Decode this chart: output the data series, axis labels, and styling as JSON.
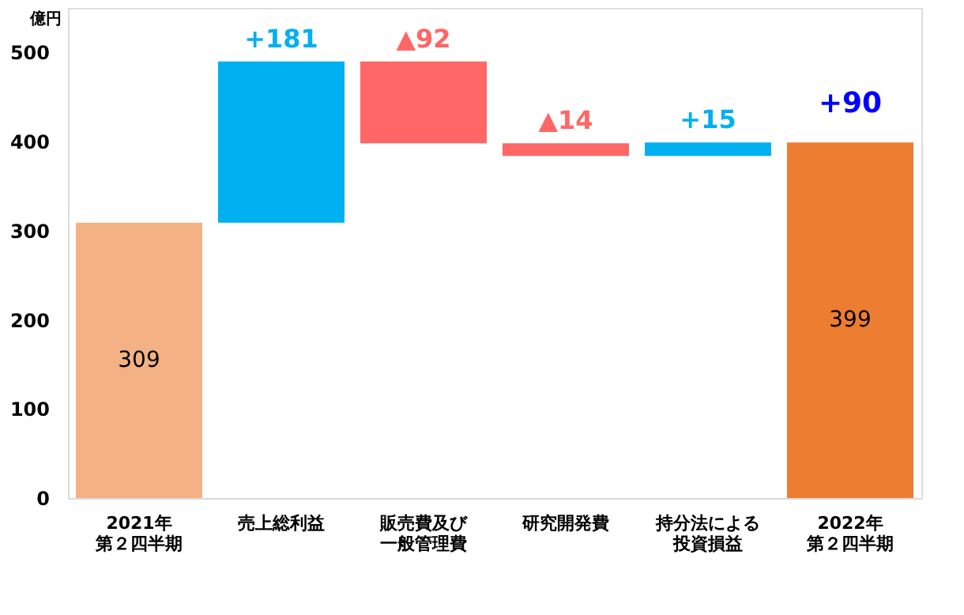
{
  "chart_data": {
    "type": "bar",
    "ylabel": "億円",
    "categories": [
      "2021年第２四半期",
      "売上総利益",
      "販売費及び一般管理費",
      "研究開発費",
      "持分法による投資損益",
      "2022年第２四半期"
    ],
    "values": [
      309,
      181,
      -92,
      -14,
      15,
      399
    ],
    "base": [
      0,
      309,
      490,
      398,
      384,
      0
    ],
    "colors": [
      "#f4b183",
      "#00b0f0",
      "#ff6666",
      "#ff6666",
      "#00b0f0",
      "#ed7d31"
    ],
    "value_labels": [
      "309",
      "+181",
      "▲92",
      "▲14",
      "+15",
      "399"
    ],
    "annotations": [
      {
        "text": "+90",
        "x": "2022年第２四半期",
        "y": 399
      }
    ],
    "ylim": [
      0,
      550
    ],
    "yticks": [
      0,
      100,
      200,
      300,
      400,
      500
    ],
    "grid": false
  }
}
